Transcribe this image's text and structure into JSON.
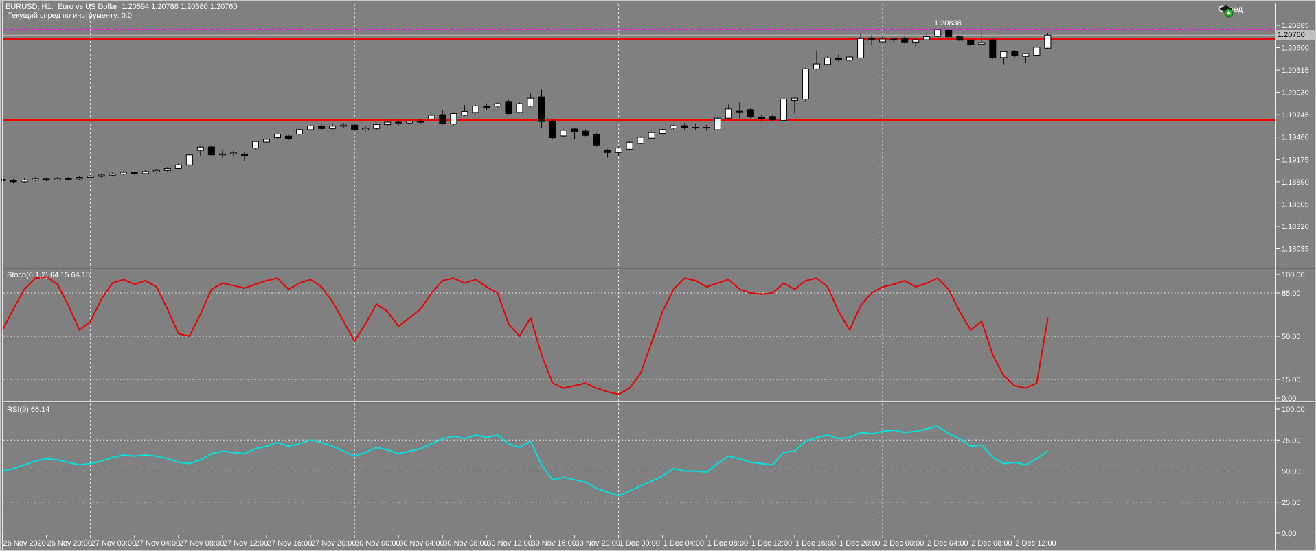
{
  "header": {
    "symbol_line": "EURUSD, H1:  Euro vs US Dollar  1.20594 1.20788 1.20580 1.20760",
    "spread_line": "Текущий спред по инструменту: 0.0",
    "spread_button_label": "Спред"
  },
  "chart_data": {
    "type": "candlestick",
    "symbol": "EURUSD",
    "timeframe": "H1",
    "ohlc_header": {
      "open": "1.20594",
      "high": "1.20788",
      "low": "1.20580",
      "close": "1.20760"
    },
    "price_axis_labels": [
      "1.20885",
      "1.20600",
      "1.20315",
      "1.20030",
      "1.19745",
      "1.19460",
      "1.19175",
      "1.18890",
      "1.18605",
      "1.18320",
      "1.18035"
    ],
    "time_labels": [
      "26 Nov 2020",
      "26 Nov 20:00",
      "27 Nov 00:00",
      "27 Nov 04:00",
      "27 Nov 08:00",
      "27 Nov 12:00",
      "27 Nov 16:00",
      "27 Nov 20:00",
      "30 Nov 00:00",
      "30 Nov 04:00",
      "30 Nov 08:00",
      "30 Nov 12:00",
      "30 Nov 16:00",
      "30 Nov 20:00",
      "1 Dec 00:00",
      "1 Dec 04:00",
      "1 Dec 08:00",
      "1 Dec 12:00",
      "1 Dec 16:00",
      "1 Dec 20:00",
      "2 Dec 00:00",
      "2 Dec 04:00",
      "2 Dec 08:00",
      "2 Dec 12:00"
    ],
    "day_separator_candle_indices": [
      8,
      32,
      56,
      80
    ],
    "candles": [
      [
        1.1892,
        1.18945,
        1.18885,
        1.18905
      ],
      [
        1.18905,
        1.18925,
        1.1887,
        1.1889
      ],
      [
        1.1889,
        1.1893,
        1.1888,
        1.1891
      ],
      [
        1.1891,
        1.18945,
        1.18895,
        1.18925
      ],
      [
        1.18925,
        1.1894,
        1.18895,
        1.18915
      ],
      [
        1.18915,
        1.1895,
        1.18905,
        1.1893
      ],
      [
        1.1893,
        1.1895,
        1.18905,
        1.18925
      ],
      [
        1.18925,
        1.1896,
        1.18915,
        1.18945
      ],
      [
        1.18945,
        1.18975,
        1.1893,
        1.1896
      ],
      [
        1.1896,
        1.1899,
        1.18945,
        1.18975
      ],
      [
        1.18975,
        1.19005,
        1.1896,
        1.1899
      ],
      [
        1.1899,
        1.19025,
        1.18975,
        1.1901
      ],
      [
        1.1901,
        1.1902,
        1.1898,
        1.18995
      ],
      [
        1.18995,
        1.19035,
        1.18985,
        1.1902
      ],
      [
        1.1902,
        1.1905,
        1.19005,
        1.19035
      ],
      [
        1.19035,
        1.19075,
        1.1902,
        1.1906
      ],
      [
        1.1906,
        1.1912,
        1.19045,
        1.19105
      ],
      [
        1.19105,
        1.19245,
        1.19095,
        1.19232
      ],
      [
        1.19292,
        1.19345,
        1.19219,
        1.19333
      ],
      [
        1.19335,
        1.1935,
        1.19225,
        1.19233
      ],
      [
        1.19233,
        1.1929,
        1.192,
        1.19245
      ],
      [
        1.19245,
        1.19285,
        1.19215,
        1.19257
      ],
      [
        1.19244,
        1.19265,
        1.19151,
        1.19222
      ],
      [
        1.19321,
        1.1941,
        1.193,
        1.19403
      ],
      [
        1.19397,
        1.19445,
        1.1938,
        1.19432
      ],
      [
        1.19453,
        1.1951,
        1.1944,
        1.19497
      ],
      [
        1.19473,
        1.1949,
        1.1942,
        1.19438
      ],
      [
        1.19497,
        1.19565,
        1.19485,
        1.19555
      ],
      [
        1.19555,
        1.19615,
        1.1954,
        1.19602
      ],
      [
        1.19598,
        1.1962,
        1.1955,
        1.19569
      ],
      [
        1.19569,
        1.19625,
        1.19555,
        1.196
      ],
      [
        1.196,
        1.1964,
        1.1958,
        1.19613
      ],
      [
        1.19613,
        1.1963,
        1.1954,
        1.19554
      ],
      [
        1.19554,
        1.19595,
        1.19535,
        1.1957
      ],
      [
        1.1957,
        1.19635,
        1.19555,
        1.1962
      ],
      [
        1.1962,
        1.1967,
        1.19605,
        1.1965
      ],
      [
        1.1965,
        1.19665,
        1.19615,
        1.1964
      ],
      [
        1.1964,
        1.1968,
        1.19625,
        1.1966
      ],
      [
        1.1966,
        1.1969,
        1.19625,
        1.1965
      ],
      [
        1.19691,
        1.1975,
        1.1968,
        1.19738
      ],
      [
        1.19745,
        1.19808,
        1.1962,
        1.19633
      ],
      [
        1.19628,
        1.19775,
        1.19615,
        1.1976
      ],
      [
        1.1974,
        1.19868,
        1.1973,
        1.19787
      ],
      [
        1.19774,
        1.1987,
        1.1976,
        1.19856
      ],
      [
        1.19856,
        1.1989,
        1.198,
        1.19838
      ],
      [
        1.19856,
        1.199,
        1.1984,
        1.19885
      ],
      [
        1.19914,
        1.1993,
        1.1975,
        1.1976
      ],
      [
        1.19774,
        1.199,
        1.19765,
        1.19885
      ],
      [
        1.19856,
        1.20014,
        1.19845,
        1.19955
      ],
      [
        1.19973,
        1.20067,
        1.19576,
        1.19658
      ],
      [
        1.19657,
        1.1968,
        1.1943,
        1.19453
      ],
      [
        1.19476,
        1.1956,
        1.1946,
        1.19546
      ],
      [
        1.19563,
        1.1958,
        1.19435,
        1.19525
      ],
      [
        1.19534,
        1.1956,
        1.1947,
        1.19482
      ],
      [
        1.19496,
        1.1951,
        1.1934,
        1.19351
      ],
      [
        1.19292,
        1.1931,
        1.192,
        1.19263
      ],
      [
        1.19263,
        1.1934,
        1.19219,
        1.19321
      ],
      [
        1.19306,
        1.19405,
        1.19295,
        1.19394
      ],
      [
        1.19379,
        1.1947,
        1.1937,
        1.19458
      ],
      [
        1.19447,
        1.1953,
        1.19435,
        1.19517
      ],
      [
        1.19506,
        1.19565,
        1.19495,
        1.19555
      ],
      [
        1.19576,
        1.1962,
        1.1956,
        1.19605
      ],
      [
        1.19605,
        1.1964,
        1.19545,
        1.19584
      ],
      [
        1.19584,
        1.19635,
        1.19545,
        1.19584
      ],
      [
        1.19584,
        1.1962,
        1.1954,
        1.19578
      ],
      [
        1.19554,
        1.19715,
        1.19545,
        1.19701
      ],
      [
        1.19701,
        1.19876,
        1.1969,
        1.19818
      ],
      [
        1.19789,
        1.19905,
        1.197,
        1.19789
      ],
      [
        1.19809,
        1.1983,
        1.197,
        1.19721
      ],
      [
        1.19716,
        1.1974,
        1.19655,
        1.19692
      ],
      [
        1.19722,
        1.1974,
        1.1966,
        1.19681
      ],
      [
        1.19672,
        1.1995,
        1.19665,
        1.19944
      ],
      [
        1.19927,
        1.19975,
        1.1976,
        1.19956
      ],
      [
        1.19944,
        1.20345,
        1.1991,
        1.2033
      ],
      [
        1.2033,
        1.20563,
        1.2032,
        1.20394
      ],
      [
        1.20388,
        1.2049,
        1.2038,
        1.2047
      ],
      [
        1.2047,
        1.2052,
        1.2041,
        1.20447
      ],
      [
        1.20441,
        1.205,
        1.2043,
        1.20482
      ],
      [
        1.2047,
        1.20774,
        1.2046,
        1.20716
      ],
      [
        1.20716,
        1.2076,
        1.2064,
        1.20716
      ],
      [
        1.20675,
        1.2074,
        1.2066,
        1.2071
      ],
      [
        1.2071,
        1.2073,
        1.2067,
        1.207
      ],
      [
        1.20716,
        1.2074,
        1.2065,
        1.20672
      ],
      [
        1.20672,
        1.2072,
        1.2061,
        1.20701
      ],
      [
        1.20701,
        1.20791,
        1.2069,
        1.2074
      ],
      [
        1.20745,
        1.20838,
        1.20735,
        1.20832
      ],
      [
        1.20826,
        1.20835,
        1.2072,
        1.20739
      ],
      [
        1.20739,
        1.2076,
        1.2068,
        1.20695
      ],
      [
        1.2069,
        1.2071,
        1.2062,
        1.20637
      ],
      [
        1.20646,
        1.2082,
        1.2063,
        1.20665
      ],
      [
        1.20701,
        1.2071,
        1.2046,
        1.20476
      ],
      [
        1.20475,
        1.20555,
        1.20388,
        1.20549
      ],
      [
        1.20554,
        1.2057,
        1.2048,
        1.20497
      ],
      [
        1.2049,
        1.2053,
        1.20403,
        1.20525
      ],
      [
        1.20504,
        1.20615,
        1.2049,
        1.20606
      ],
      [
        1.20594,
        1.20788,
        1.2058,
        1.2076
      ]
    ],
    "lines": {
      "resistance": {
        "price": 1.20705,
        "color": "#ee0000"
      },
      "support": {
        "price": 1.19672,
        "color": "#ee0000"
      },
      "high": {
        "price": 1.20838,
        "label": "1.20838",
        "color": "#ff00ff"
      },
      "current": {
        "price": 1.2076,
        "label": "1.20760",
        "color": "#bbbbbb"
      }
    },
    "stoch": {
      "label": "Stoch(6,1,2) 64.15 64.15",
      "value": 64.15,
      "axis_labels": [
        "100.00",
        "85.00",
        "50.00",
        "15.00",
        "0.00"
      ],
      "levels": [
        85,
        50,
        15
      ],
      "values": [
        55,
        72,
        88,
        97,
        98,
        92,
        75,
        55,
        62,
        80,
        93,
        96,
        92,
        95,
        90,
        72,
        52,
        50,
        68,
        88,
        93,
        91,
        89,
        92,
        95,
        97,
        88,
        93,
        96,
        90,
        78,
        62,
        46,
        60,
        76,
        70,
        58,
        65,
        72,
        85,
        95,
        97,
        93,
        96,
        90,
        85,
        60,
        50,
        65,
        35,
        12,
        8,
        10,
        12,
        8,
        5,
        3,
        8,
        20,
        45,
        70,
        88,
        97,
        95,
        90,
        93,
        96,
        88,
        85,
        84,
        85,
        93,
        88,
        95,
        97,
        90,
        70,
        55,
        75,
        85,
        90,
        92,
        95,
        90,
        93,
        97,
        88,
        70,
        55,
        62,
        35,
        18,
        10,
        8,
        12,
        64.15
      ]
    },
    "rsi": {
      "label": "RSI(9) 66.14",
      "value": 66.14,
      "axis_labels": [
        "100.00",
        "75.00",
        "50.00",
        "25.00",
        "0.00"
      ],
      "levels": [
        75,
        50,
        25
      ],
      "values": [
        50,
        52,
        55,
        58,
        60,
        59,
        57,
        55,
        56,
        58,
        61,
        63,
        62,
        63,
        62,
        60,
        57,
        56,
        59,
        64,
        66,
        65,
        64,
        68,
        70,
        73,
        70,
        72,
        75,
        73,
        70,
        66,
        62,
        65,
        69,
        67,
        64,
        66,
        68,
        72,
        76,
        78,
        76,
        79,
        77,
        79,
        72,
        69,
        74,
        55,
        43,
        45,
        43,
        41,
        36,
        33,
        30,
        34,
        38,
        42,
        46,
        52,
        50,
        50,
        49,
        56,
        62,
        60,
        57,
        56,
        55,
        65,
        66,
        74,
        77,
        79,
        76,
        77,
        81,
        80,
        82,
        83,
        81,
        82,
        84,
        86,
        80,
        76,
        70,
        71,
        61,
        56,
        57,
        55,
        60,
        66.14
      ]
    },
    "colors": {
      "background": "#808080",
      "bull_body": "#ffffff",
      "bear_body": "#000000",
      "wick": "#000000",
      "stoch_line": "#e60000",
      "rsi_line": "#00e2e2",
      "grid_separator": "#f2f2f2",
      "level_dash": "#e8e8e8",
      "axis_text": "#ffffff"
    }
  }
}
